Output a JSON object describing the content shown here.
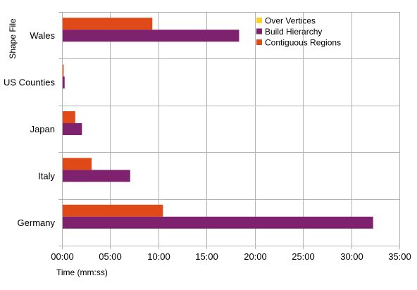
{
  "chart_data": {
    "type": "bar",
    "orientation": "horizontal",
    "categories": [
      "Wales",
      "US Counties",
      "Japan",
      "Italy",
      "Germany"
    ],
    "series": [
      {
        "name": "Over Vertices",
        "color": "#ffd320",
        "values": [
          0.0,
          0.0,
          0.0,
          0.0,
          0.0
        ]
      },
      {
        "name": "Build Hierarchy",
        "color": "#7e2270",
        "values": [
          18.3,
          0.2,
          2.0,
          7.0,
          32.2
        ]
      },
      {
        "name": "Contiguous Regions",
        "color": "#e04a19",
        "values": [
          9.3,
          0.1,
          1.3,
          3.0,
          10.4
        ]
      }
    ],
    "xlabel": "Time (mm:ss)",
    "ylabel": "Shape File",
    "xlim": [
      0,
      35
    ],
    "xtick_values": [
      0,
      5,
      10,
      15,
      20,
      25,
      30,
      35
    ],
    "xtick_labels": [
      "00:00",
      "05:00",
      "10:00",
      "15:00",
      "20:00",
      "25:00",
      "30:00",
      "35:00"
    ],
    "grid": true,
    "legend_position": "top-right"
  }
}
